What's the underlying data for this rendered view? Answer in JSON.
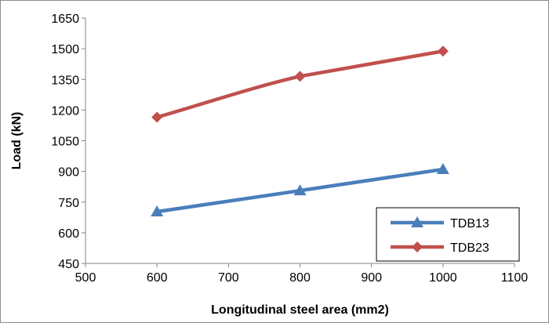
{
  "chart_data": {
    "type": "line",
    "title": "",
    "xlabel": "Longitudinal steel area (mm2)",
    "ylabel": "Load (kN)",
    "xlim": [
      500,
      1100
    ],
    "ylim": [
      450,
      1650
    ],
    "x_ticks": [
      500,
      600,
      700,
      800,
      900,
      1000,
      1100
    ],
    "y_ticks": [
      450,
      600,
      750,
      900,
      1050,
      1200,
      1350,
      1500,
      1650
    ],
    "grid": false,
    "legend_position": "bottom-right",
    "series": [
      {
        "name": "TDB13",
        "color": "#4a7ebb",
        "marker": "triangle",
        "x": [
          600,
          800,
          1000
        ],
        "y": [
          703,
          806,
          910
        ]
      },
      {
        "name": "TDB23",
        "color": "#c0504d",
        "marker": "diamond",
        "x": [
          600,
          800,
          1000
        ],
        "y": [
          1165,
          1365,
          1488
        ]
      }
    ]
  }
}
